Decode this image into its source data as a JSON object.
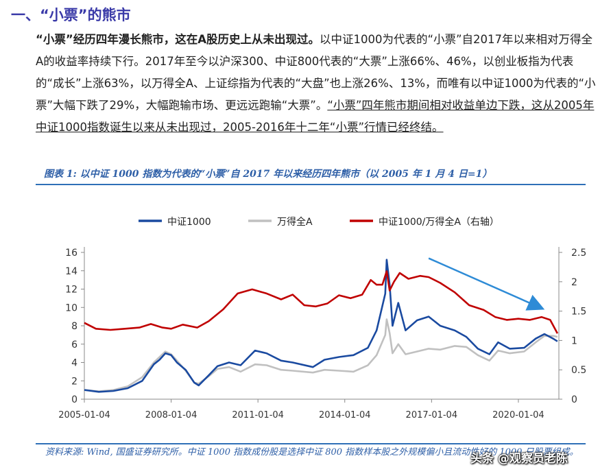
{
  "section": {
    "title": "一、“小票”的熊市"
  },
  "paragraph": {
    "bold_lead": "“小票”经历四年漫长熊市，这在A股历史上从未出现过。",
    "body": "以中证1000为代表的“小票”自2017年以来相对万得全A的收益率持续下行。2017年至今以沪深300、中证800代表的“大票”上涨66%、46%，以创业板指为代表的“成长”上涨63%，以万得全A、上证综指为代表的“大盘”也上涨26%、13%，而唯有以中证1000为代表的“小票”大幅下跌了29%，大幅跑输市场、更远远跑输“大票”。",
    "underlined": "“小票”四年熊市期间相对收益单边下跌，这从2005年中证1000指数诞生以来从未出现过，2005-2016年十二年“小票”行情已经终结。"
  },
  "figure": {
    "title": "图表 1:  以中证 1000 指数为代表的“小票”自 2017 年以来经历四年熊市（以 2005 年 1 月 4 日=1）",
    "source": "资料来源: Wind, 国盛证券研究所。中证 1000 指数成份股是选择中证 800 指数样本股之外规模偏小且流动性好的 1000 只股票组成。"
  },
  "watermark": "头条 @观察员老陈",
  "chart_data": {
    "type": "line",
    "x_ticks": [
      "2005-01-04",
      "2008-01-04",
      "2011-01-04",
      "2014-01-04",
      "2017-01-04",
      "2020-01-04"
    ],
    "y_left_ticks": [
      "0",
      "2",
      "4",
      "6",
      "8",
      "10",
      "12",
      "14",
      "16"
    ],
    "y_right_ticks": [
      "0",
      "0.5",
      "1",
      "1.5",
      "2",
      "2.5"
    ],
    "ylim_left": [
      0,
      16
    ],
    "ylim_right": [
      0,
      2.5
    ],
    "xlim": [
      2005.0,
      2021.4
    ],
    "legend_position": "top",
    "grid": false,
    "series": [
      {
        "name": "中证1000",
        "axis": "left",
        "color": "#1a4aa0",
        "points": [
          [
            2005.0,
            1.0
          ],
          [
            2005.5,
            0.8
          ],
          [
            2006.0,
            0.9
          ],
          [
            2006.5,
            1.2
          ],
          [
            2007.0,
            2.0
          ],
          [
            2007.4,
            3.8
          ],
          [
            2007.6,
            4.3
          ],
          [
            2007.8,
            5.0
          ],
          [
            2008.0,
            4.8
          ],
          [
            2008.2,
            4.0
          ],
          [
            2008.5,
            3.2
          ],
          [
            2008.8,
            1.8
          ],
          [
            2008.95,
            1.5
          ],
          [
            2009.3,
            2.6
          ],
          [
            2009.6,
            3.6
          ],
          [
            2010.0,
            4.0
          ],
          [
            2010.4,
            3.7
          ],
          [
            2010.9,
            5.3
          ],
          [
            2011.3,
            5.0
          ],
          [
            2011.8,
            4.2
          ],
          [
            2012.2,
            4.0
          ],
          [
            2012.9,
            3.5
          ],
          [
            2013.3,
            4.3
          ],
          [
            2013.8,
            4.6
          ],
          [
            2014.3,
            4.8
          ],
          [
            2014.8,
            5.6
          ],
          [
            2015.1,
            7.5
          ],
          [
            2015.4,
            11.5
          ],
          [
            2015.45,
            15.2
          ],
          [
            2015.55,
            12.5
          ],
          [
            2015.65,
            8.0
          ],
          [
            2015.85,
            10.5
          ],
          [
            2016.1,
            7.5
          ],
          [
            2016.5,
            8.6
          ],
          [
            2016.9,
            9.0
          ],
          [
            2017.3,
            8.0
          ],
          [
            2017.8,
            7.5
          ],
          [
            2018.2,
            6.8
          ],
          [
            2018.6,
            5.5
          ],
          [
            2019.0,
            4.9
          ],
          [
            2019.3,
            6.2
          ],
          [
            2019.7,
            5.5
          ],
          [
            2020.2,
            5.6
          ],
          [
            2020.6,
            6.6
          ],
          [
            2020.9,
            7.1
          ],
          [
            2021.2,
            6.6
          ],
          [
            2021.35,
            6.3
          ]
        ]
      },
      {
        "name": "万得全A",
        "axis": "left",
        "color": "#c0c0c0",
        "points": [
          [
            2005.0,
            1.0
          ],
          [
            2005.5,
            0.85
          ],
          [
            2006.0,
            1.0
          ],
          [
            2006.5,
            1.4
          ],
          [
            2007.0,
            2.4
          ],
          [
            2007.4,
            4.0
          ],
          [
            2007.6,
            4.6
          ],
          [
            2007.8,
            5.2
          ],
          [
            2008.0,
            4.9
          ],
          [
            2008.2,
            4.2
          ],
          [
            2008.5,
            3.1
          ],
          [
            2008.8,
            1.8
          ],
          [
            2008.95,
            1.7
          ],
          [
            2009.3,
            2.5
          ],
          [
            2009.6,
            3.3
          ],
          [
            2010.0,
            3.5
          ],
          [
            2010.4,
            3.0
          ],
          [
            2010.9,
            3.8
          ],
          [
            2011.3,
            3.7
          ],
          [
            2011.8,
            3.2
          ],
          [
            2012.2,
            3.1
          ],
          [
            2012.9,
            2.9
          ],
          [
            2013.3,
            3.2
          ],
          [
            2013.8,
            3.1
          ],
          [
            2014.3,
            3.0
          ],
          [
            2014.8,
            3.7
          ],
          [
            2015.1,
            4.8
          ],
          [
            2015.4,
            7.0
          ],
          [
            2015.45,
            8.7
          ],
          [
            2015.55,
            7.2
          ],
          [
            2015.65,
            5.0
          ],
          [
            2015.85,
            6.0
          ],
          [
            2016.1,
            4.9
          ],
          [
            2016.5,
            5.2
          ],
          [
            2016.9,
            5.5
          ],
          [
            2017.3,
            5.4
          ],
          [
            2017.8,
            5.8
          ],
          [
            2018.2,
            5.7
          ],
          [
            2018.6,
            4.8
          ],
          [
            2019.0,
            4.2
          ],
          [
            2019.3,
            5.3
          ],
          [
            2019.7,
            5.0
          ],
          [
            2020.2,
            5.2
          ],
          [
            2020.6,
            6.2
          ],
          [
            2020.9,
            6.9
          ],
          [
            2021.2,
            6.9
          ],
          [
            2021.35,
            6.8
          ]
        ]
      },
      {
        "name": "中证1000/万得全A（右轴）",
        "axis": "right",
        "color": "#c00000",
        "points": [
          [
            2005.0,
            1.3
          ],
          [
            2005.4,
            1.2
          ],
          [
            2005.9,
            1.18
          ],
          [
            2006.4,
            1.2
          ],
          [
            2006.9,
            1.22
          ],
          [
            2007.3,
            1.28
          ],
          [
            2007.7,
            1.22
          ],
          [
            2008.0,
            1.2
          ],
          [
            2008.4,
            1.27
          ],
          [
            2008.9,
            1.22
          ],
          [
            2009.3,
            1.33
          ],
          [
            2009.8,
            1.53
          ],
          [
            2010.3,
            1.8
          ],
          [
            2010.8,
            1.87
          ],
          [
            2011.3,
            1.8
          ],
          [
            2011.8,
            1.7
          ],
          [
            2012.2,
            1.78
          ],
          [
            2012.6,
            1.6
          ],
          [
            2013.0,
            1.58
          ],
          [
            2013.4,
            1.63
          ],
          [
            2013.8,
            1.77
          ],
          [
            2014.2,
            1.72
          ],
          [
            2014.6,
            1.78
          ],
          [
            2014.9,
            2.03
          ],
          [
            2015.1,
            1.95
          ],
          [
            2015.3,
            1.95
          ],
          [
            2015.45,
            2.18
          ],
          [
            2015.55,
            1.85
          ],
          [
            2015.7,
            2.0
          ],
          [
            2015.9,
            2.15
          ],
          [
            2016.2,
            2.05
          ],
          [
            2016.6,
            2.1
          ],
          [
            2016.9,
            2.08
          ],
          [
            2017.3,
            1.98
          ],
          [
            2017.8,
            1.82
          ],
          [
            2018.3,
            1.6
          ],
          [
            2018.8,
            1.52
          ],
          [
            2019.2,
            1.4
          ],
          [
            2019.6,
            1.35
          ],
          [
            2020.0,
            1.37
          ],
          [
            2020.4,
            1.35
          ],
          [
            2020.8,
            1.4
          ],
          [
            2021.1,
            1.35
          ],
          [
            2021.35,
            1.12
          ]
        ]
      }
    ],
    "annotation": {
      "type": "arrow",
      "color": "#2e8bd6",
      "from": [
        2016.9,
        2.4
      ],
      "to": [
        2020.8,
        1.55
      ],
      "axis": "right"
    }
  }
}
